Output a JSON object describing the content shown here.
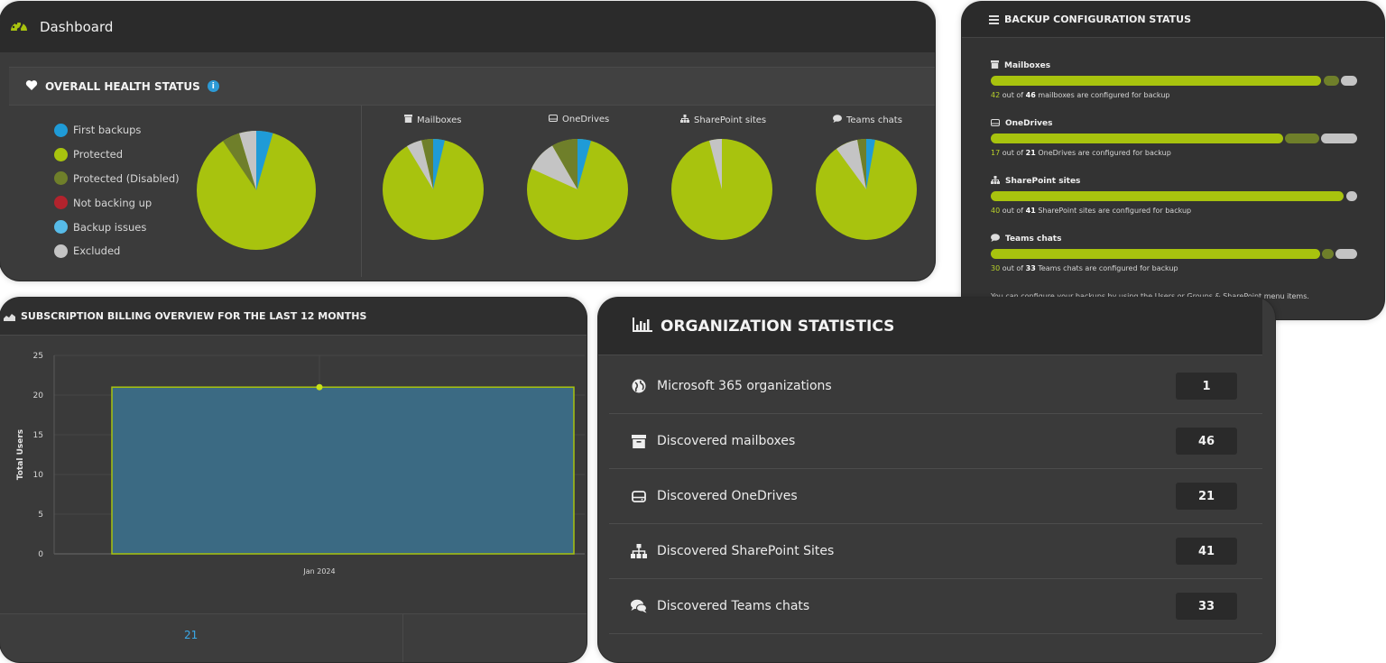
{
  "dashboard": {
    "title": "Dashboard",
    "health_title": "OVERALL HEALTH STATUS",
    "legend": [
      {
        "label": "First backups",
        "color": "#1f9bd7"
      },
      {
        "label": "Protected",
        "color": "#a8c30e"
      },
      {
        "label": "Protected (Disabled)",
        "color": "#6f7f2a"
      },
      {
        "label": "Not backing up",
        "color": "#b2232d"
      },
      {
        "label": "Backup issues",
        "color": "#57bbe8"
      },
      {
        "label": "Excluded",
        "color": "#c4c4c4"
      }
    ],
    "pies": [
      {
        "label": "Mailboxes",
        "icon": "archive-icon"
      },
      {
        "label": "OneDrives",
        "icon": "drive-icon"
      },
      {
        "label": "SharePoint sites",
        "icon": "sitemap-icon"
      },
      {
        "label": "Teams chats",
        "icon": "chat-icon"
      }
    ]
  },
  "backup": {
    "title": "BACKUP CONFIGURATION STATUS",
    "sections": [
      {
        "name": "Mailboxes",
        "configured": "42",
        "total": "46",
        "suffix": "mailboxes are configured for backup"
      },
      {
        "name": "OneDrives",
        "configured": "17",
        "total": "21",
        "suffix": "OneDrives are configured for backup"
      },
      {
        "name": "SharePoint sites",
        "configured": "40",
        "total": "41",
        "suffix": "SharePoint sites are configured for backup"
      },
      {
        "name": "Teams chats",
        "configured": "30",
        "total": "33",
        "suffix": "Teams chats are configured for backup"
      }
    ],
    "out_of": "out of",
    "footer": "You can configure your backups by using the Users or Groups & SharePoint menu items."
  },
  "billing": {
    "title": "SUBSCRIPTION BILLING OVERVIEW FOR THE LAST 12 MONTHS",
    "footer_value": "21"
  },
  "chart_data": {
    "type": "area",
    "categories": [
      "Jan 2024"
    ],
    "series": [
      {
        "values": [
          21
        ]
      }
    ],
    "xlabel": "",
    "ylabel": "Total Users",
    "ylim": [
      0,
      25
    ],
    "yticks": [
      "0",
      "5",
      "10",
      "15",
      "20",
      "25"
    ],
    "grid": true
  },
  "org": {
    "title": "ORGANIZATION STATISTICS",
    "rows": [
      {
        "label": "Microsoft 365 organizations",
        "value": "1",
        "icon": "globe-icon"
      },
      {
        "label": "Discovered mailboxes",
        "value": "46",
        "icon": "archive-icon"
      },
      {
        "label": "Discovered OneDrives",
        "value": "21",
        "icon": "drive-icon"
      },
      {
        "label": "Discovered SharePoint Sites",
        "value": "41",
        "icon": "sitemap-icon"
      },
      {
        "label": "Discovered Teams chats",
        "value": "33",
        "icon": "chat-icon"
      }
    ]
  }
}
